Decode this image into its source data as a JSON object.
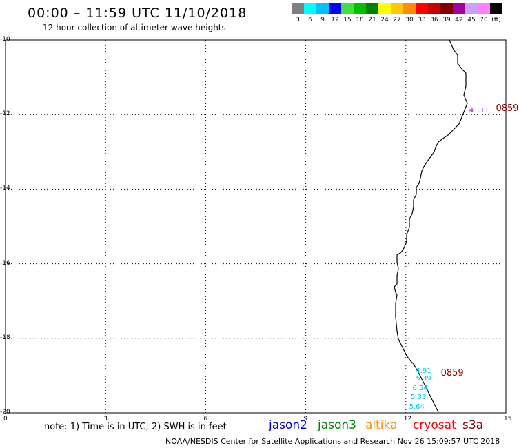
{
  "header": {
    "title": "00:00 – 11:59 UTC 11/10/2018",
    "subtitle": "12 hour collection of altimeter wave heights"
  },
  "colorbar": {
    "colors": [
      "#808080",
      "#00ffff",
      "#00bfff",
      "#0000ff",
      "#40e040",
      "#00c000",
      "#008000",
      "#ffff00",
      "#ffc800",
      "#ff8c00",
      "#ff0000",
      "#c80000",
      "#800000",
      "#a000a0",
      "#c8a0ff",
      "#ff80ff",
      "#000000"
    ],
    "labels": [
      "3",
      "6",
      "9",
      "12",
      "15",
      "18",
      "21",
      "24",
      "27",
      "30",
      "33",
      "36",
      "39",
      "42",
      "45",
      "70",
      "(ft)"
    ]
  },
  "axes": {
    "y_ticks": [
      "-10",
      "-12",
      "-14",
      "-16",
      "-18",
      "-20"
    ],
    "x_ticks": [
      "0",
      "3",
      "6",
      "9",
      "12",
      "15"
    ]
  },
  "observations": [
    {
      "value": "41.11",
      "lon": 13.9,
      "lat": -11.9,
      "color": "#a000a0"
    },
    {
      "value": "4.91",
      "lon": 12.3,
      "lat": -18.9,
      "color": "#00bfff"
    },
    {
      "value": "5.39",
      "lon": 12.3,
      "lat": -19.1,
      "color": "#00bfff"
    },
    {
      "value": "6.54",
      "lon": 12.2,
      "lat": -19.35,
      "color": "#00bfff"
    },
    {
      "value": "5.33",
      "lon": 12.15,
      "lat": -19.6,
      "color": "#00bfff"
    },
    {
      "value": "5.64",
      "lon": 12.1,
      "lat": -19.85,
      "color": "#00bfff"
    }
  ],
  "pass_times": [
    {
      "label": "0859",
      "lon": 14.7,
      "lat": -11.85
    },
    {
      "label": "0859",
      "lon": 13.05,
      "lat": -18.95
    }
  ],
  "note": "note: 1) Time is in UTC; 2) SWH is in feet",
  "legend": [
    {
      "name": "jason2",
      "color": "#0000cd"
    },
    {
      "name": "jason3",
      "color": "#008000"
    },
    {
      "name": "altika",
      "color": "#ff8c00"
    },
    {
      "name": "cryosat",
      "color": "#ff0000"
    },
    {
      "name": "s3a",
      "color": "#8b0000"
    }
  ],
  "credit": "NOAA/NESDIS Center for Satellite Applications and Research    Nov 26 15:09:57 UTC 2018"
}
